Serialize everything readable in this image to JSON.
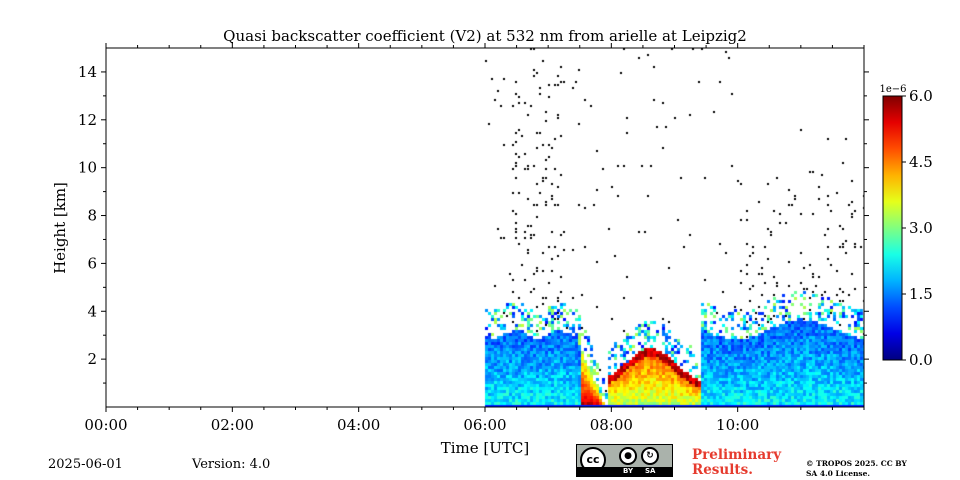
{
  "chart_data": {
    "type": "heatmap",
    "title": "Quasi backscatter coefficient (V2) at 532 nm from arielle at Leipzig2",
    "xlabel": "Time [UTC]",
    "ylabel": "Height [km]",
    "x_ticks": [
      "00:00",
      "02:00",
      "04:00",
      "06:00",
      "08:00",
      "10:00"
    ],
    "x_tick_hours": [
      0,
      2,
      4,
      6,
      8,
      10
    ],
    "xlim_hours": [
      0,
      12
    ],
    "y_ticks": [
      2,
      4,
      6,
      8,
      10,
      12,
      14
    ],
    "ylim_km": [
      0,
      15
    ],
    "data_start_hour": 6.0,
    "colorbar": {
      "min": 0.0,
      "max": 6.0,
      "ticks": [
        "0.0",
        "1.5",
        "3.0",
        "4.5",
        "6.0"
      ],
      "tick_values": [
        0.0,
        1.5,
        3.0,
        4.5,
        6.0
      ],
      "multiplier": "1e−6",
      "colormap": "jet"
    },
    "features": [
      {
        "description": "boundary layer aerosol",
        "time_start": 6.0,
        "time_end": 7.5,
        "top_km": 3.1,
        "level": 1.4
      },
      {
        "description": "boundary layer collapse / clear gap",
        "time_start": 7.6,
        "time_end": 7.9,
        "top_km": 0.0,
        "level": 0.0
      },
      {
        "description": "strong backscatter near ground",
        "time_start": 7.9,
        "time_end": 9.4,
        "top_km": 2.5,
        "level": 4.8
      },
      {
        "description": "boundary layer aerosol",
        "time_start": 9.4,
        "time_end": 12.0,
        "top_km": 3.5,
        "level": 1.6
      }
    ]
  },
  "footer": {
    "date": "2025-06-01",
    "version": "Version: 4.0",
    "preliminary": "Preliminary Results.",
    "copyright": "© TROPOS 2025. CC BY SA 4.0 License.",
    "cc_label": "cc",
    "by_label": "BY",
    "sa_label": "SA"
  }
}
